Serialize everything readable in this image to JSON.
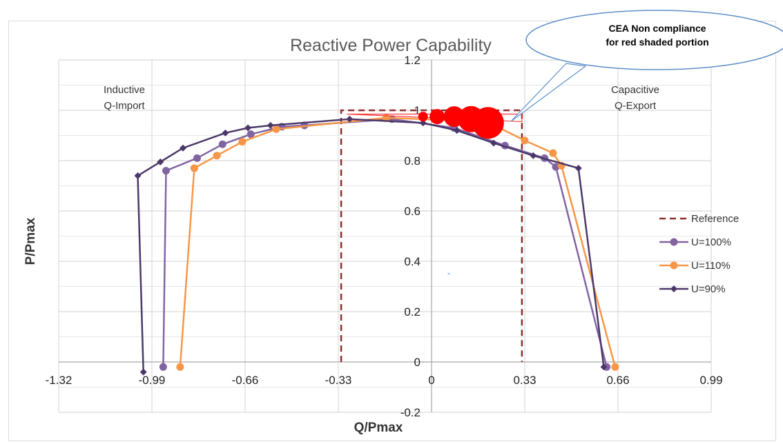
{
  "chart_data": {
    "type": "scatter",
    "title": "Reactive Power Capability",
    "xlabel": "Q/Pmax",
    "ylabel": "P/Pmax",
    "xlim": [
      -1.32,
      0.99
    ],
    "ylim": [
      -0.2,
      1.2
    ],
    "x_ticks": [
      "-1.32",
      "-0.99",
      "-0.66",
      "-0.33",
      "0",
      "0.33",
      "0.66",
      "0.99"
    ],
    "y_ticks": [
      "-0.2",
      "0",
      "0.2",
      "0.4",
      "0.6",
      "0.8",
      "1",
      "1.2"
    ],
    "grid": true,
    "legend_position": "right",
    "region_labels": {
      "left_line1": "Inductive",
      "left_line2": "Q-Import",
      "right_line1": "Capacitive",
      "right_line2": "Q-Export"
    },
    "callout": {
      "line1": "CEA Non compliance",
      "line2": "for red shaded portion"
    },
    "series": [
      {
        "name": "Reference",
        "style": "dashed",
        "color": "#8b2d2d",
        "x": [
          -0.32,
          -0.32,
          0.32,
          0.32
        ],
        "y": [
          0,
          1.0,
          1.0,
          0
        ]
      },
      {
        "name": "U=100%",
        "style": "line-circle",
        "color": "#8064a2",
        "x": [
          -0.95,
          -0.94,
          -0.83,
          -0.74,
          -0.64,
          -0.53,
          -0.45,
          -0.14,
          0.08,
          0.26,
          0.4,
          0.44,
          0.62
        ],
        "y": [
          -0.02,
          0.76,
          0.81,
          0.865,
          0.905,
          0.935,
          0.94,
          0.965,
          0.93,
          0.86,
          0.81,
          0.775,
          -0.02
        ]
      },
      {
        "name": "U=110%",
        "style": "line-circle",
        "color": "#f79646",
        "x": [
          -0.89,
          -0.84,
          -0.76,
          -0.67,
          -0.55,
          -0.16,
          0.08,
          0.24,
          0.33,
          0.43,
          0.46,
          0.65
        ],
        "y": [
          -0.02,
          0.77,
          0.82,
          0.875,
          0.925,
          0.97,
          0.96,
          0.93,
          0.88,
          0.83,
          0.78,
          -0.02
        ]
      },
      {
        "name": "U=90%",
        "style": "line-diamond",
        "color": "#4b3869",
        "x": [
          -1.02,
          -1.04,
          -0.96,
          -0.88,
          -0.73,
          -0.65,
          -0.57,
          -0.29,
          -0.03,
          0.09,
          0.22,
          0.36,
          0.52,
          0.61
        ],
        "y": [
          -0.04,
          0.74,
          0.795,
          0.85,
          0.91,
          0.93,
          0.94,
          0.965,
          0.95,
          0.92,
          0.87,
          0.82,
          0.77,
          -0.02
        ]
      }
    ],
    "noncompliance_markers": {
      "color": "#ff0000",
      "x": [
        -0.03,
        0.02,
        0.08,
        0.14,
        0.2
      ],
      "y": [
        0.975,
        0.975,
        0.975,
        0.965,
        0.95
      ]
    }
  }
}
